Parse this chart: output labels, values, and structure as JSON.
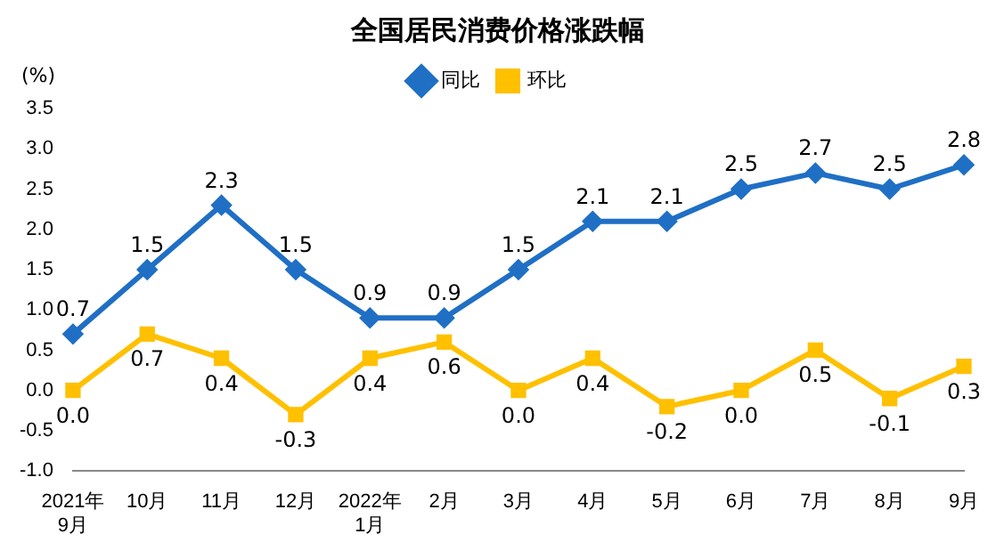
{
  "chart_data": {
    "type": "line",
    "title": "全国居民消费价格涨跌幅",
    "ylabel": "(%)",
    "categories": [
      "2021年\n9月",
      "10月",
      "11月",
      "12月",
      "2022年\n1月",
      "2月",
      "3月",
      "4月",
      "5月",
      "6月",
      "7月",
      "8月",
      "9月"
    ],
    "series": [
      {
        "name": "同比",
        "color": "#1f6fc5",
        "marker": "diamond",
        "values": [
          0.7,
          1.5,
          2.3,
          1.5,
          0.9,
          0.9,
          1.5,
          2.1,
          2.1,
          2.5,
          2.7,
          2.5,
          2.8
        ],
        "value_labels": [
          "0.7",
          "1.5",
          "2.3",
          "1.5",
          "0.9",
          "0.9",
          "1.5",
          "2.1",
          "2.1",
          "2.5",
          "2.7",
          "2.5",
          "2.8"
        ]
      },
      {
        "name": "环比",
        "color": "#ffc000",
        "marker": "square",
        "values": [
          0.0,
          0.7,
          0.4,
          -0.3,
          0.4,
          0.6,
          0.0,
          0.4,
          -0.2,
          0.0,
          0.5,
          -0.1,
          0.3
        ],
        "value_labels": [
          "0.0",
          "0.7",
          "0.4",
          "-0.3",
          "0.4",
          "0.6",
          "0.0",
          "0.4",
          "-0.2",
          "0.0",
          "0.5",
          "-0.1",
          "0.3"
        ]
      }
    ],
    "ylim": [
      -1.0,
      3.5
    ],
    "yticks": [
      {
        "value": -1,
        "label": "-1.0"
      },
      {
        "value": -0.5,
        "label": "-0.5"
      },
      {
        "value": 0,
        "label": "0.0"
      },
      {
        "value": 0.5,
        "label": "0.5"
      },
      {
        "value": 1,
        "label": "1.0"
      },
      {
        "value": 1.5,
        "label": "1.5"
      },
      {
        "value": 2,
        "label": "2.0"
      },
      {
        "value": 2.5,
        "label": "2.5"
      },
      {
        "value": 3,
        "label": "3.0"
      },
      {
        "value": 3.5,
        "label": "3.5"
      }
    ],
    "grid": false,
    "legend": "top",
    "line_style": "solid"
  }
}
